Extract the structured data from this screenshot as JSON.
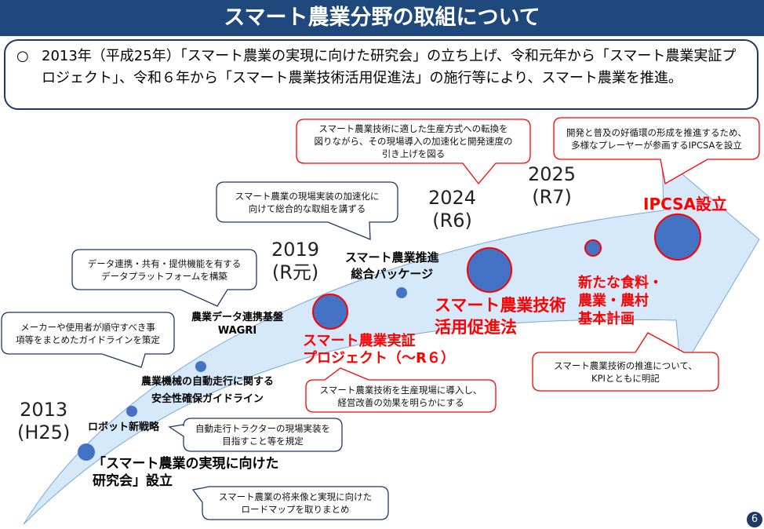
{
  "title": "スマート農業分野の取組について",
  "summary": {
    "bullet": "○",
    "text": "2013年（平成25年）「スマート農業の実現に向けた研究会」の立ち上げ、令和元年から「スマート農業実証プロジェクト」、令和６年から「スマート農業技術活用促進法」の施行等により、スマート農業を推進。"
  },
  "colors": {
    "banner": "#1f497d",
    "accent_red": "#ff0000",
    "circle_blue": "#4472c4",
    "arrow_fill": "#d6e9fb"
  },
  "years": [
    {
      "year": "2013",
      "era": "(H25)"
    },
    {
      "year": "2019",
      "era": "(R元)"
    },
    {
      "year": "2024",
      "era": "(R6)"
    },
    {
      "year": "2025",
      "era": "(R7)"
    }
  ],
  "milestones": {
    "kenkyukai": [
      "「スマート農業の実現に向けた",
      "研究会」設立"
    ],
    "robot": "ロボット新戦略",
    "guideline": [
      "農業機械の自動走行に関する",
      "安全性確保ガイドライン"
    ],
    "wagri": [
      "農業データ連携基盤",
      "WAGRI"
    ],
    "package": [
      "スマート農業推進",
      "総合パッケージ"
    ],
    "jissho": [
      "スマート農業実証",
      "プロジェクト（～R６）"
    ],
    "sokushin": [
      "スマート農業技術",
      "活用促進法"
    ],
    "keikaku": [
      "新たな食料・",
      "農業・農村",
      "基本計画"
    ],
    "ipcsa": "IPCSA設立"
  },
  "callouts": {
    "roadmap": [
      "スマート農業の将来像と実現に向けた",
      "ロードマップを取りまとめ"
    ],
    "tractor": [
      "自動走行トラクターの現場実装を",
      "目指すこと等を規定"
    ],
    "maker": [
      "メーカーや使用者が順守すべき事",
      "項等をまとめたガイドラインを策定"
    ],
    "platform": [
      "データ連携・共有・提供機能を有する",
      "データプラットフォームを構築"
    ],
    "package": [
      "スマート農業の現場実装の加速化に",
      "向けて総合的な取組を講ずる"
    ],
    "jissho": [
      "スマート農業技術を生産現場に導入し、",
      "経営改善の効果を明らかにする"
    ],
    "sokushin": [
      "スマート農業技術に適した生産方式への転換を",
      "図りながら、その現場導入の加速化と開発速度の",
      "引き上げを図る"
    ],
    "keikaku": [
      "スマート農業技術の推進について、",
      "KPIとともに明記"
    ],
    "ipcsa": [
      "開発と普及の好循環の形成を推進するため、",
      "多様なプレーヤーが参画するIPCSAを設立"
    ]
  },
  "page_number": "6"
}
